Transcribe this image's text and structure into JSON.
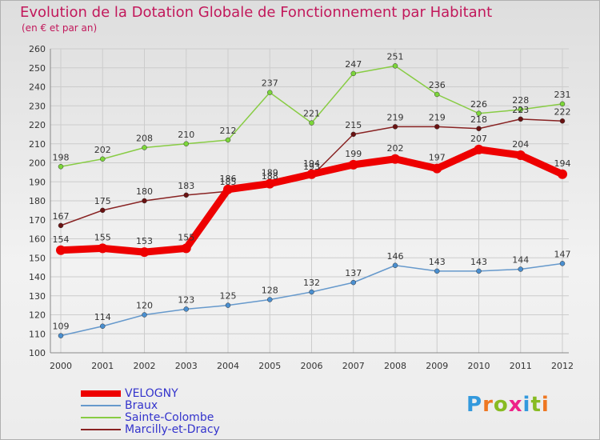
{
  "title": "Evolution de la Dotation Globale de Fonctionnement par Habitant",
  "subtitle": "(en € et par an)",
  "logo_text": "Proxiti",
  "colors": {
    "title": "#c2185b",
    "legend_text": "#3333cc",
    "grid": "#cccccc",
    "axis": "#888888"
  },
  "chart_data": {
    "type": "line",
    "title": "Evolution de la Dotation Globale de Fonctionnement par Habitant",
    "subtitle": "(en € et par an)",
    "xlabel": "",
    "ylabel": "",
    "x": [
      "2000",
      "2001",
      "2002",
      "2003",
      "2004",
      "2005",
      "2006",
      "2007",
      "2008",
      "2009",
      "2010",
      "2011",
      "2012"
    ],
    "ylim": [
      100,
      260
    ],
    "yticks": [
      100,
      110,
      120,
      130,
      140,
      150,
      160,
      170,
      180,
      190,
      200,
      210,
      220,
      230,
      240,
      250,
      260
    ],
    "grid": true,
    "legend_position": "bottom-left",
    "series": [
      {
        "name": "VELOGNY",
        "color": "#ee0000",
        "values": [
          154,
          155,
          153,
          155,
          186,
          189,
          194,
          199,
          202,
          197,
          207,
          204,
          194
        ]
      },
      {
        "name": "Braux",
        "color": "#6699cc",
        "values": [
          109,
          114,
          120,
          123,
          125,
          128,
          132,
          137,
          146,
          143,
          143,
          144,
          147
        ]
      },
      {
        "name": "Sainte-Colombe",
        "color": "#88cc44",
        "values": [
          198,
          202,
          208,
          210,
          212,
          237,
          221,
          247,
          251,
          236,
          226,
          228,
          231
        ]
      },
      {
        "name": "Marcilly-et-Dracy",
        "color": "#882222",
        "values": [
          167,
          175,
          180,
          183,
          185,
          188,
          193,
          215,
          219,
          219,
          218,
          223,
          222
        ]
      }
    ]
  }
}
